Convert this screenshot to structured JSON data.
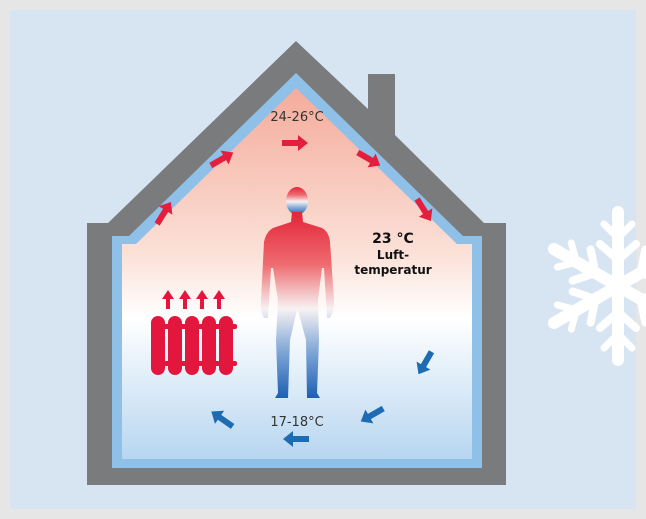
{
  "labels": {
    "top_temperature": "24-26°C",
    "bottom_temperature": "17-18°C",
    "air_temperature_value": "23 °C",
    "air_temperature_line1": "Luft-",
    "air_temperature_line2": "temperatur"
  },
  "colors": {
    "background": "#d7e5f3",
    "frame_border": "#e6e6e6",
    "wall": "#7a7b7d",
    "inner_edge": "#8fc0e8",
    "warm_air": "#f6b6a6",
    "cool_air": "#bcd9f1",
    "warm_arrow": "#e41f3d",
    "cool_arrow": "#1c6bb3",
    "radiator": "#e3173e",
    "snowflake": "#ffffff"
  },
  "icons": {
    "radiator": "radiator-icon",
    "person": "person-silhouette-icon",
    "snowflake": "snowflake-icon"
  }
}
